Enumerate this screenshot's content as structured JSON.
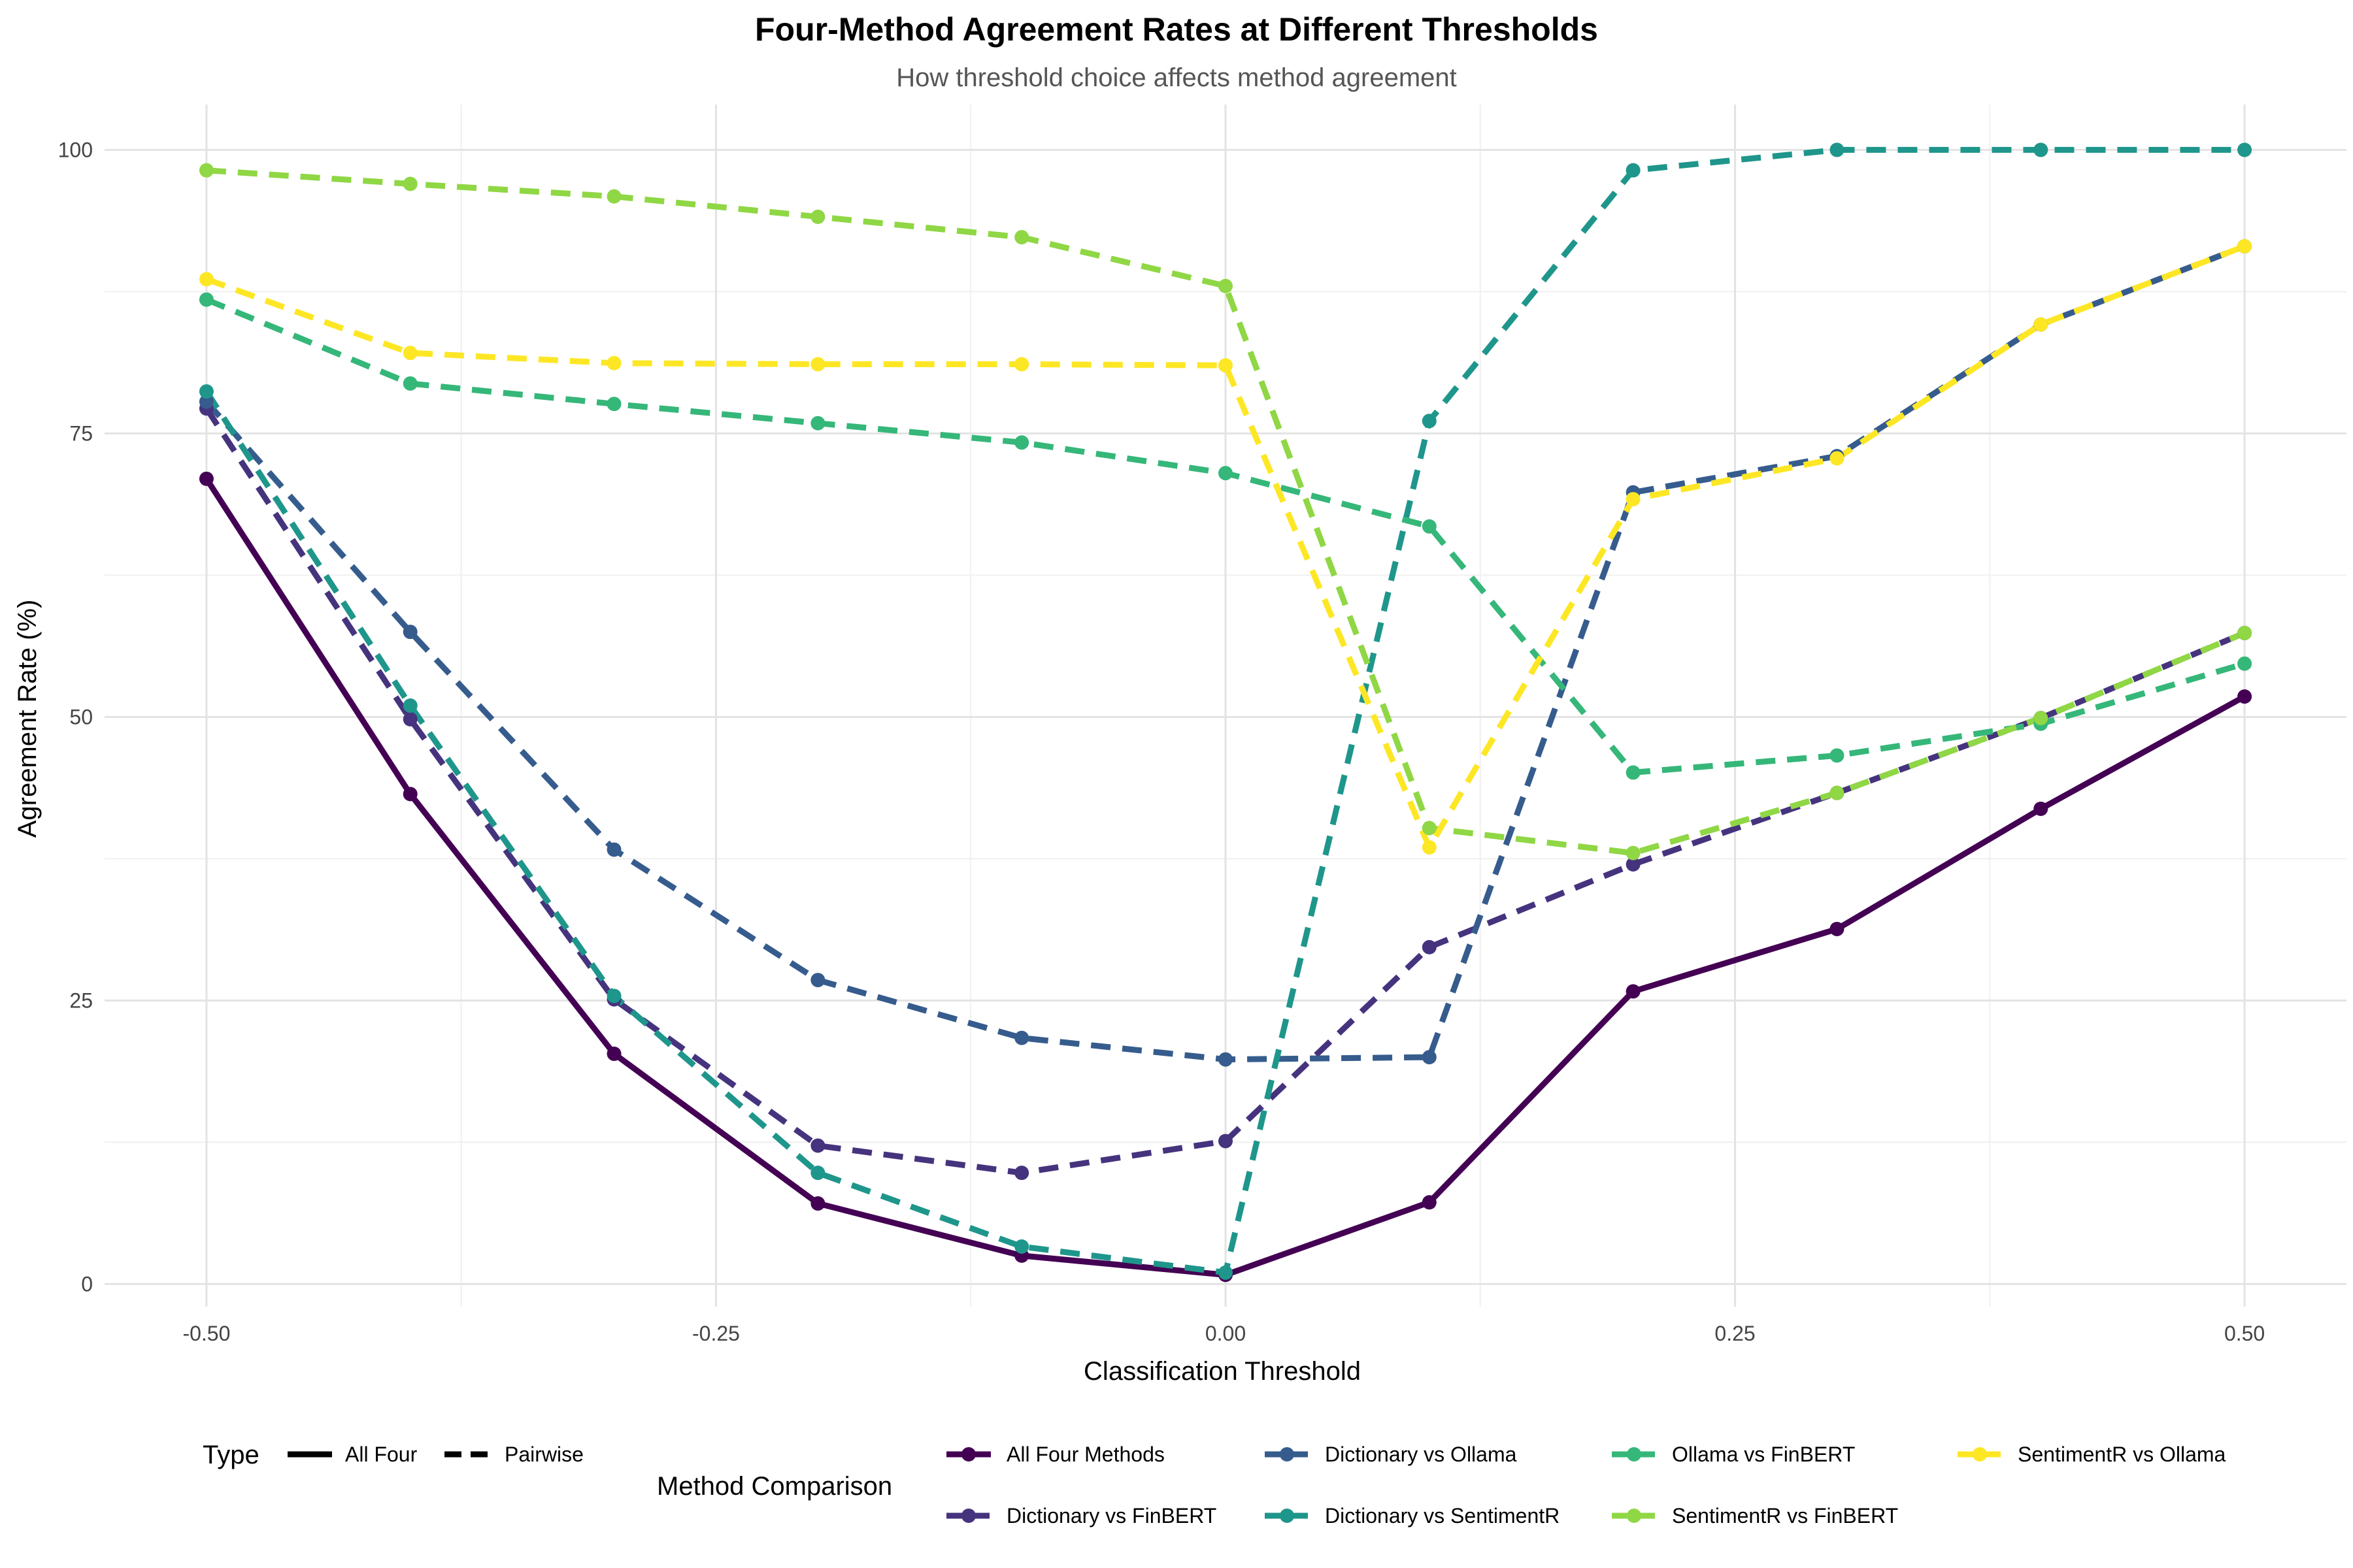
{
  "chart_data": {
    "type": "line",
    "title": "Four-Method Agreement Rates at Different Thresholds",
    "subtitle": "How threshold choice affects method agreement",
    "xlabel": "Classification Threshold",
    "ylabel": "Agreement Rate (%)",
    "xlim": [
      -0.55,
      0.55
    ],
    "ylim": [
      -2,
      104
    ],
    "x_ticks": [
      -0.5,
      -0.25,
      0,
      0.25,
      0.5
    ],
    "x_tick_labels": [
      "-0.50",
      "-0.25",
      "0.00",
      "0.25",
      "0.50"
    ],
    "y_ticks": [
      0,
      25,
      50,
      75,
      100
    ],
    "y_tick_labels": [
      "0",
      "25",
      "50",
      "75",
      "100"
    ],
    "grid": true,
    "legend_position": "bottom",
    "x": [
      -0.5,
      -0.4,
      -0.3,
      -0.2,
      -0.1,
      0.0,
      0.1,
      0.2,
      0.3,
      0.4,
      0.5
    ],
    "type_legend": {
      "title": "Type",
      "entries": [
        {
          "label": "All Four",
          "dash": "solid"
        },
        {
          "label": "Pairwise",
          "dash": "dashed"
        }
      ]
    },
    "series_legend_title": "Method Comparison",
    "series": [
      {
        "name": "All Four Methods",
        "type": "All Four",
        "color": "#440154",
        "values": [
          71.0,
          43.2,
          20.3,
          7.1,
          2.5,
          0.8,
          7.2,
          25.8,
          31.3,
          41.9,
          51.8
        ]
      },
      {
        "name": "Dictionary vs FinBERT",
        "type": "Pairwise",
        "color": "#46337E",
        "values": [
          77.2,
          49.8,
          25.1,
          12.2,
          9.8,
          12.6,
          29.7,
          37.0,
          43.3,
          49.9,
          57.4
        ]
      },
      {
        "name": "Dictionary vs Ollama",
        "type": "Pairwise",
        "color": "#365C8D",
        "values": [
          77.8,
          57.5,
          38.3,
          26.8,
          21.7,
          19.8,
          20.0,
          69.8,
          73.0,
          84.6,
          91.5
        ]
      },
      {
        "name": "Dictionary vs SentimentR",
        "type": "Pairwise",
        "color": "#1F968B",
        "values": [
          78.7,
          51.0,
          25.4,
          9.8,
          3.3,
          1.0,
          76.1,
          98.2,
          100.0,
          100.0,
          100.0
        ]
      },
      {
        "name": "Ollama vs FinBERT",
        "type": "Pairwise",
        "color": "#35B779",
        "values": [
          86.8,
          79.4,
          77.6,
          75.9,
          74.2,
          71.5,
          66.8,
          45.1,
          46.6,
          49.4,
          54.7
        ]
      },
      {
        "name": "SentimentR vs FinBERT",
        "type": "Pairwise",
        "color": "#8FD744",
        "values": [
          98.2,
          97.0,
          95.9,
          94.1,
          92.3,
          88.0,
          40.2,
          38.0,
          43.3,
          49.9,
          57.4
        ]
      },
      {
        "name": "SentimentR vs Ollama",
        "type": "Pairwise",
        "color": "#FDE725",
        "values": [
          88.6,
          82.1,
          81.2,
          81.1,
          81.1,
          81.0,
          38.5,
          69.2,
          72.8,
          84.6,
          91.5
        ]
      }
    ]
  }
}
